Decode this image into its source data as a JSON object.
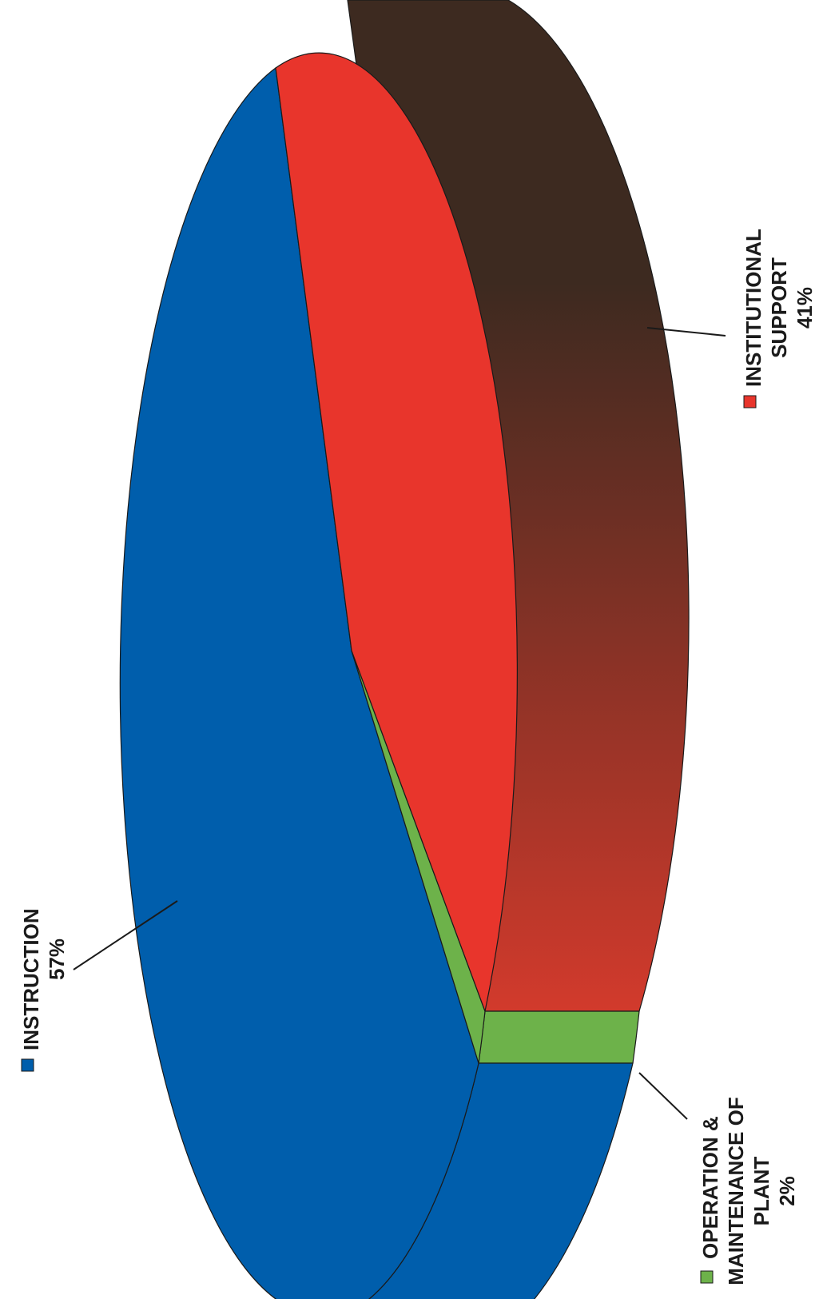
{
  "chart_data": {
    "type": "pie",
    "style": "3d",
    "orientation": "rotated-90-clockwise",
    "title": "",
    "slices": [
      {
        "name": "INSTRUCTION",
        "value": 57,
        "label_value": "57%",
        "color": "#005eac"
      },
      {
        "name": "OPERATION & MAINTENANCE OF PLANT",
        "value": 2,
        "label_value": "2%",
        "color": "#6db24a"
      },
      {
        "name": "INSTITUTIONAL SUPPORT",
        "value": 41,
        "label_value": "41%",
        "color": "#e8352c"
      }
    ],
    "side_colors": {
      "institutional_support_dark": "#3d2a20",
      "institutional_support_light": "#d23a2c"
    },
    "labels": {
      "instruction": [
        "INSTRUCTION",
        "57%"
      ],
      "operation": [
        "OPERATION &",
        "MAINTENANCE OF",
        "PLANT",
        "2%"
      ],
      "institutional": [
        "INSTITUTIONAL",
        "SUPPORT",
        "41%"
      ]
    }
  }
}
